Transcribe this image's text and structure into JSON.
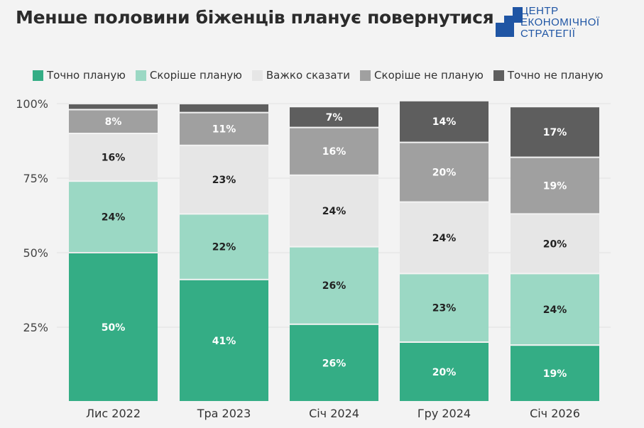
{
  "title": "Менше половини біженців планує повернутися",
  "logo": {
    "lines": [
      "ЦЕНТР",
      "ЕКОНОМІЧНОЇ",
      "СТРАТЕГІЇ"
    ],
    "color": "#1f55a4"
  },
  "chart_data": {
    "type": "bar",
    "stacked": true,
    "categories": [
      "Лис 2022",
      "Тра 2023",
      "Січ 2024",
      "Гру 2024",
      "Січ 2026"
    ],
    "series": [
      {
        "name": "Точно планую",
        "color": "#34ad85",
        "values": [
          50,
          41,
          26,
          20,
          19
        ],
        "labels": [
          "50%",
          "41%",
          "26%",
          "20%",
          "19%"
        ]
      },
      {
        "name": "Скоріше планую",
        "color": "#9bd8c4",
        "values": [
          24,
          22,
          26,
          23,
          24
        ],
        "labels": [
          "24%",
          "22%",
          "26%",
          "23%",
          "24%"
        ]
      },
      {
        "name": "Важко сказати",
        "color": "#e6e6e6",
        "values": [
          16,
          23,
          24,
          24,
          20
        ],
        "labels": [
          "16%",
          "23%",
          "24%",
          "24%",
          "20%"
        ]
      },
      {
        "name": "Скоріше не планую",
        "color": "#a0a0a0",
        "values": [
          8,
          11,
          16,
          20,
          19
        ],
        "labels": [
          "8%",
          "11%",
          "16%",
          "20%",
          "19%"
        ]
      },
      {
        "name": "Точно не планую",
        "color": "#5e5e5e",
        "values": [
          2,
          3,
          7,
          14,
          17
        ],
        "labels": [
          "",
          "",
          "7%",
          "14%",
          "17%"
        ]
      }
    ],
    "yticks": [
      "25%",
      "50%",
      "75%",
      "100%"
    ],
    "ytick_values": [
      25,
      50,
      75,
      100
    ],
    "ylim": [
      0,
      100
    ],
    "grid": true,
    "legend": "top"
  }
}
